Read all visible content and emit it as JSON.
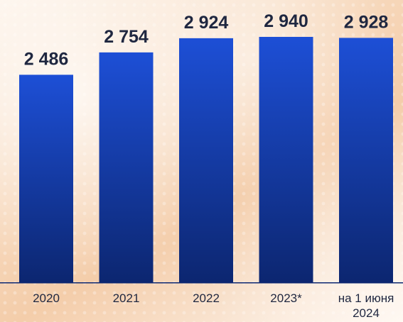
{
  "chart_data": {
    "type": "bar",
    "categories": [
      "2020",
      "2021",
      "2022",
      "2023*",
      "на 1 июня 2024"
    ],
    "values": [
      2486,
      2754,
      2924,
      2940,
      2928
    ],
    "value_labels": [
      "2 486",
      "2 754",
      "2 924",
      "2 940",
      "2 928"
    ],
    "title": "",
    "xlabel": "",
    "ylabel": "",
    "grid": false,
    "bar_color_top": "#1d4fd6",
    "bar_color_bottom": "#0c2670",
    "text_color": "#1f2740",
    "axis_line_color": "#0c2670"
  }
}
